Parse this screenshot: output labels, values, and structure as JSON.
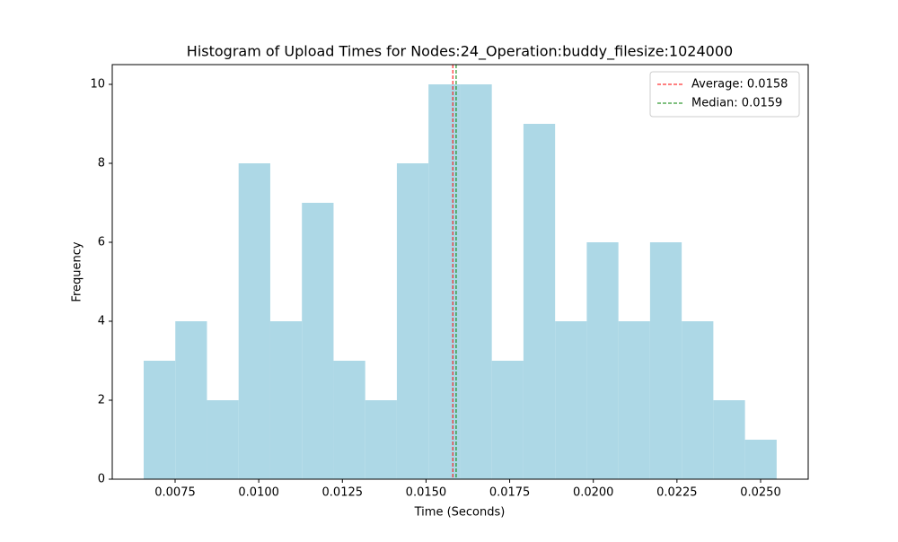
{
  "chart_data": {
    "type": "histogram",
    "title": "Histogram of Upload Times for Nodes:24_Operation:buddy_filesize:1024000",
    "x_label": "Time (Seconds)",
    "y_label": "Frequency",
    "bins": [
      0.00656,
      0.007506,
      0.008452,
      0.009398,
      0.010344,
      0.01129,
      0.012236,
      0.013182,
      0.014128,
      0.015074,
      0.01602,
      0.016966,
      0.017912,
      0.018858,
      0.019804,
      0.02075,
      0.021696,
      0.022642,
      0.023588,
      0.024534,
      0.02548
    ],
    "values": [
      3,
      4,
      2,
      8,
      4,
      7,
      3,
      2,
      8,
      10,
      10,
      3,
      9,
      4,
      6,
      4,
      6,
      4,
      2,
      1
    ],
    "color": "#add8e6",
    "xlim": [
      0.005621,
      0.026423
    ],
    "ylim": [
      0,
      10.5
    ],
    "xticks": [
      0.0075,
      {
        "value": 0.01,
        "label": "0.0100"
      },
      0.0125,
      {
        "value": 0.015,
        "label": "0.0150"
      },
      0.0175,
      {
        "value": 0.02,
        "label": "0.0200"
      },
      0.0225,
      {
        "value": 0.025,
        "label": "0.0250"
      }
    ],
    "yticks": [
      0,
      2,
      4,
      6,
      8,
      10
    ],
    "reference_lines": [
      {
        "label": "Average: 0.0158",
        "value": 0.0158,
        "color": "red"
      },
      {
        "label": "Median: 0.0159",
        "value": 0.0159,
        "color": "green"
      }
    ],
    "legend": "upper right"
  }
}
